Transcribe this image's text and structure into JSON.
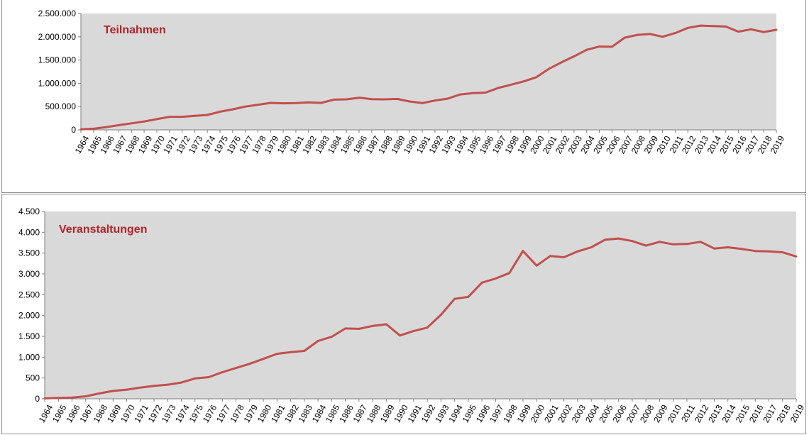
{
  "colors": {
    "line": "#c0504d",
    "plot_bg": "#d9d9d9",
    "title": "#b0242a",
    "axis": "#7f7f7f"
  },
  "chart_data": [
    {
      "type": "line",
      "title": "Teilnahmen",
      "xlabel": "",
      "ylabel": "",
      "ylim": [
        0,
        2500000
      ],
      "yticks": [
        0,
        500000,
        1000000,
        1500000,
        2000000,
        2500000
      ],
      "ytick_labels": [
        "0",
        "500.000",
        "1.000.000",
        "1.500.000",
        "2.000.000",
        "2.500.000"
      ],
      "grid": false,
      "categories": [
        "1964",
        "1965",
        "1966",
        "1967",
        "1968",
        "1969",
        "1970",
        "1971",
        "1972",
        "1973",
        "1974",
        "1975",
        "1976",
        "1977",
        "1978",
        "1979",
        "1980",
        "1981",
        "1982",
        "1983",
        "1984",
        "1985",
        "1986",
        "1987",
        "1988",
        "1989",
        "1990",
        "1991",
        "1992",
        "1993",
        "1994",
        "1995",
        "1996",
        "1997",
        "1998",
        "1999",
        "2000",
        "2001",
        "2002",
        "2003",
        "2004",
        "2005",
        "2006",
        "2007",
        "2008",
        "2009",
        "2010",
        "2011",
        "2012",
        "2013",
        "2014",
        "2015",
        "2016",
        "2017",
        "2018",
        "2019"
      ],
      "values": [
        10000,
        25000,
        60000,
        100000,
        140000,
        180000,
        230000,
        280000,
        280000,
        300000,
        320000,
        390000,
        440000,
        500000,
        540000,
        580000,
        570000,
        575000,
        590000,
        580000,
        650000,
        655000,
        690000,
        660000,
        655000,
        665000,
        610000,
        575000,
        630000,
        670000,
        760000,
        790000,
        800000,
        900000,
        970000,
        1040000,
        1130000,
        1310000,
        1450000,
        1580000,
        1720000,
        1790000,
        1785000,
        1980000,
        2040000,
        2060000,
        2000000,
        2080000,
        2190000,
        2240000,
        2230000,
        2220000,
        2110000,
        2160000,
        2100000,
        2150000
      ]
    },
    {
      "type": "line",
      "title": "Veranstaltungen",
      "xlabel": "",
      "ylabel": "",
      "ylim": [
        0,
        4500
      ],
      "yticks": [
        0,
        500,
        1000,
        1500,
        2000,
        2500,
        3000,
        3500,
        4000,
        4500
      ],
      "ytick_labels": [
        "0",
        "500",
        "1.000",
        "1.500",
        "2.000",
        "2.500",
        "3.000",
        "3.500",
        "4.000",
        "4.500"
      ],
      "grid": false,
      "categories": [
        "1964",
        "1965",
        "1966",
        "1967",
        "1968",
        "1969",
        "1970",
        "1971",
        "1972",
        "1973",
        "1974",
        "1975",
        "1976",
        "1977",
        "1978",
        "1979",
        "1980",
        "1981",
        "1982",
        "1983",
        "1984",
        "1985",
        "1986",
        "1987",
        "1988",
        "1989",
        "1990",
        "1991",
        "1992",
        "1993",
        "1994",
        "1995",
        "1996",
        "1997",
        "1998",
        "1999",
        "2000",
        "2001",
        "2002",
        "2003",
        "2004",
        "2005",
        "2006",
        "2007",
        "2008",
        "2009",
        "2010",
        "2011",
        "2012",
        "2013",
        "2014",
        "2015",
        "2016",
        "2017",
        "2018",
        "2019"
      ],
      "values": [
        10,
        20,
        30,
        60,
        130,
        190,
        220,
        270,
        310,
        340,
        390,
        490,
        520,
        640,
        740,
        840,
        960,
        1080,
        1120,
        1150,
        1390,
        1490,
        1690,
        1680,
        1750,
        1790,
        1520,
        1630,
        1710,
        2020,
        2400,
        2450,
        2790,
        2890,
        3020,
        3550,
        3200,
        3430,
        3400,
        3540,
        3640,
        3820,
        3850,
        3790,
        3680,
        3770,
        3710,
        3720,
        3770,
        3610,
        3640,
        3600,
        3550,
        3540,
        3520,
        3420
      ]
    }
  ]
}
